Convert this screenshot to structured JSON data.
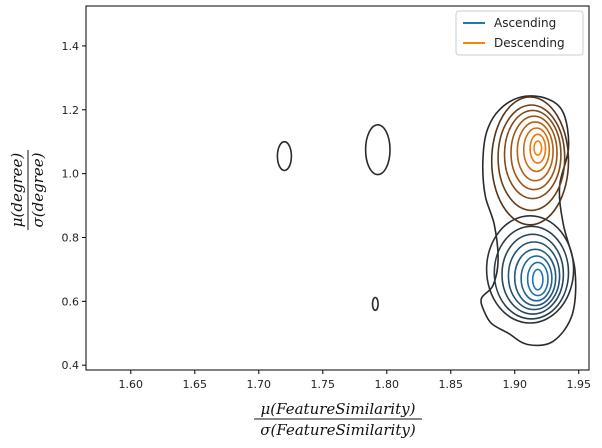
{
  "chart_data": {
    "type": "kde-contour",
    "title": "",
    "xlabel": {
      "numerator": "μ(FeatureSimilarity)",
      "denominator": "σ(FeatureSimilarity)"
    },
    "ylabel": {
      "numerator": "μ(degree)",
      "denominator": "σ(degree)"
    },
    "xlim": [
      1.565,
      1.958
    ],
    "ylim": [
      0.385,
      1.525
    ],
    "xticks": [
      "1.60",
      "1.65",
      "1.70",
      "1.75",
      "1.80",
      "1.85",
      "1.90",
      "1.95"
    ],
    "yticks": [
      "0.4",
      "0.6",
      "0.8",
      "1.0",
      "1.2",
      "1.4"
    ],
    "legend_position": "top-right",
    "series": [
      {
        "name": "Ascending",
        "color": "#1f77b4",
        "peak": [
          1.918,
          0.67
        ],
        "contours": [
          {
            "level": 1,
            "cx": 1.912,
            "cy": 0.7,
            "rx": 0.034,
            "ry": 0.168,
            "colorMix": 0.82
          },
          {
            "level": 2,
            "cx": 1.913,
            "cy": 0.69,
            "rx": 0.029,
            "ry": 0.145,
            "colorMix": 0.7
          },
          {
            "level": 3,
            "cx": 1.914,
            "cy": 0.685,
            "rx": 0.024,
            "ry": 0.125,
            "colorMix": 0.58
          },
          {
            "level": 4,
            "cx": 1.915,
            "cy": 0.68,
            "rx": 0.02,
            "ry": 0.106,
            "colorMix": 0.46
          },
          {
            "level": 5,
            "cx": 1.916,
            "cy": 0.675,
            "rx": 0.016,
            "ry": 0.088,
            "colorMix": 0.34
          },
          {
            "level": 6,
            "cx": 1.917,
            "cy": 0.672,
            "rx": 0.012,
            "ry": 0.07,
            "colorMix": 0.22
          },
          {
            "level": 7,
            "cx": 1.918,
            "cy": 0.67,
            "rx": 0.008,
            "ry": 0.052,
            "colorMix": 0.1
          },
          {
            "level": 8,
            "cx": 1.918,
            "cy": 0.668,
            "rx": 0.004,
            "ry": 0.032,
            "colorMix": 0.0
          }
        ]
      },
      {
        "name": "Descending",
        "color": "#ff7f0e",
        "peak": [
          1.918,
          1.08
        ],
        "contours": [
          {
            "level": 1,
            "cx": 1.912,
            "cy": 1.04,
            "rx": 0.03,
            "ry": 0.2,
            "colorMix": 0.82
          },
          {
            "level": 2,
            "cx": 1.913,
            "cy": 1.05,
            "rx": 0.026,
            "ry": 0.165,
            "colorMix": 0.7
          },
          {
            "level": 3,
            "cx": 1.914,
            "cy": 1.06,
            "rx": 0.022,
            "ry": 0.138,
            "colorMix": 0.58
          },
          {
            "level": 4,
            "cx": 1.915,
            "cy": 1.065,
            "rx": 0.018,
            "ry": 0.115,
            "colorMix": 0.46
          },
          {
            "level": 5,
            "cx": 1.916,
            "cy": 1.07,
            "rx": 0.014,
            "ry": 0.092,
            "colorMix": 0.34
          },
          {
            "level": 6,
            "cx": 1.917,
            "cy": 1.075,
            "rx": 0.01,
            "ry": 0.068,
            "colorMix": 0.22
          },
          {
            "level": 7,
            "cx": 1.918,
            "cy": 1.078,
            "rx": 0.006,
            "ry": 0.045,
            "colorMix": 0.1
          },
          {
            "level": 8,
            "cx": 1.918,
            "cy": 1.08,
            "rx": 0.003,
            "ry": 0.022,
            "colorMix": 0.0
          }
        ]
      }
    ],
    "combined_outline": [
      [
        1.876,
        0.57
      ],
      [
        1.874,
        0.61
      ],
      [
        1.883,
        0.65
      ],
      [
        1.887,
        0.73
      ],
      [
        1.884,
        0.84
      ],
      [
        1.877,
        0.93
      ],
      [
        1.875,
        1.03
      ],
      [
        1.878,
        1.13
      ],
      [
        1.888,
        1.2
      ],
      [
        1.905,
        1.24
      ],
      [
        1.925,
        1.235
      ],
      [
        1.938,
        1.19
      ],
      [
        1.942,
        1.08
      ],
      [
        1.935,
        0.96
      ],
      [
        1.938,
        0.84
      ],
      [
        1.947,
        0.7
      ],
      [
        1.945,
        0.56
      ],
      [
        1.93,
        0.475
      ],
      [
        1.91,
        0.465
      ],
      [
        1.895,
        0.5
      ],
      [
        1.882,
        0.53
      ]
    ],
    "small_islands": [
      {
        "cx": 1.72,
        "cy": 1.055,
        "rx": 0.0055,
        "ry": 0.045
      },
      {
        "cx": 1.793,
        "cy": 1.075,
        "rx": 0.0095,
        "ry": 0.078
      },
      {
        "cx": 1.791,
        "cy": 0.592,
        "rx": 0.0022,
        "ry": 0.02
      }
    ]
  }
}
